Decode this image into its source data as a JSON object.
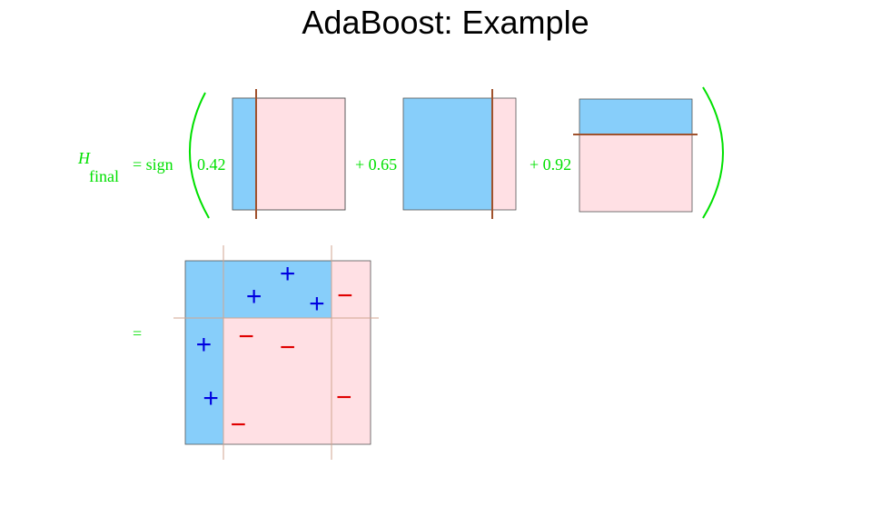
{
  "title": "AdaBoost: Example",
  "equation": {
    "lhs_symbol": "H",
    "lhs_subscript": "final",
    "equals_sign": "= sign",
    "terms": [
      {
        "coefficient": "0.42"
      },
      {
        "coefficient": "+ 0.65"
      },
      {
        "coefficient": "+ 0.92"
      }
    ],
    "result_equals": "="
  },
  "colors": {
    "green_text": "#00e000",
    "positive_region": "#87cefa",
    "negative_region": "#ffe0e4",
    "split_line": "#a0522d",
    "plus_mark": "#0000e0",
    "minus_mark": "#e00000"
  },
  "result": {
    "plus_symbol": "+",
    "minus_symbol": "−",
    "points": [
      {
        "label": "+",
        "x": 0.552,
        "y": 0.93
      },
      {
        "label": "+",
        "x": 0.371,
        "y": 0.806
      },
      {
        "label": "+",
        "x": 0.71,
        "y": 0.767
      },
      {
        "label": "+",
        "x": 0.1,
        "y": 0.545
      },
      {
        "label": "+",
        "x": 0.138,
        "y": 0.252
      },
      {
        "label": "-",
        "x": 0.862,
        "y": 0.812
      },
      {
        "label": "-",
        "x": 0.329,
        "y": 0.589
      },
      {
        "label": "-",
        "x": 0.552,
        "y": 0.53
      },
      {
        "label": "-",
        "x": 0.857,
        "y": 0.257
      },
      {
        "label": "-",
        "x": 0.286,
        "y": 0.109
      }
    ]
  }
}
